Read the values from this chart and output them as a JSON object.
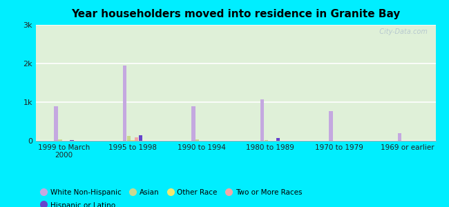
{
  "title": "Year householders moved into residence in Granite Bay",
  "categories": [
    "1999 to March\n2000",
    "1995 to 1998",
    "1990 to 1994",
    "1980 to 1989",
    "1970 to 1979",
    "1969 or earlier"
  ],
  "series": {
    "White Non-Hispanic": [
      900,
      1950,
      900,
      1080,
      760,
      200
    ],
    "Asian": [
      30,
      120,
      30,
      20,
      8,
      8
    ],
    "Other Race": [
      5,
      10,
      5,
      5,
      5,
      5
    ],
    "Two or More Races": [
      8,
      95,
      8,
      8,
      5,
      5
    ],
    "Hispanic or Latino": [
      10,
      145,
      8,
      80,
      5,
      5
    ]
  },
  "colors": {
    "White Non-Hispanic": "#c4a8e0",
    "Asian": "#c8d890",
    "Other Race": "#f0e870",
    "Two or More Races": "#f0a8a8",
    "Hispanic or Latino": "#6644cc"
  },
  "legend_order_row1": [
    "White Non-Hispanic",
    "Asian",
    "Other Race",
    "Two or More Races"
  ],
  "legend_order_row2": [
    "Hispanic or Latino"
  ],
  "ylim": [
    0,
    3000
  ],
  "yticks": [
    0,
    1000,
    2000,
    3000
  ],
  "ytick_labels": [
    "0",
    "1k",
    "2k",
    "3k"
  ],
  "bg_outer": "#00eeff",
  "watermark": "  City-Data.com",
  "bar_width": 0.055
}
